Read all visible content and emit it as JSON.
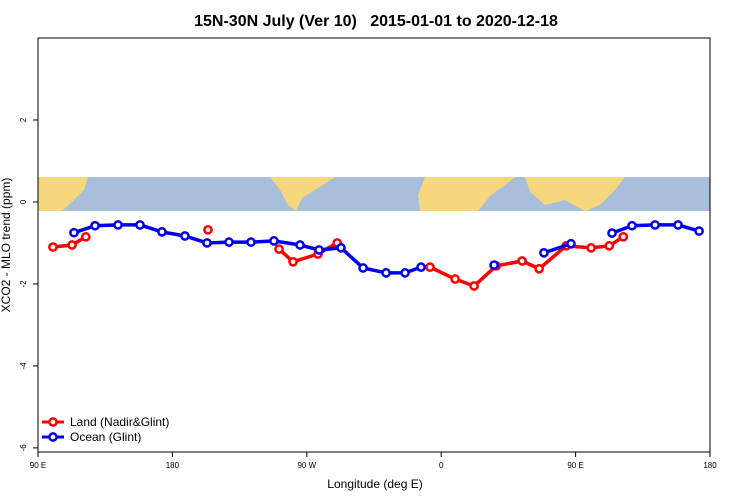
{
  "chart_data": {
    "type": "line",
    "title": "15N-30N July (Ver 10)   2015-01-01 to 2020-12-18",
    "xlabel": "Longitude (deg E)",
    "ylabel": "XCO2 - MLO trend (ppm)",
    "xlim": [
      90,
      540
    ],
    "ylim": [
      -6.1,
      4
    ],
    "xticks": [
      {
        "value": 90,
        "label": "90 E"
      },
      180,
      {
        "value": 270,
        "label": "90 W"
      },
      {
        "value": 360,
        "label": "0"
      },
      {
        "value": 450,
        "label": "90 E"
      },
      {
        "value": 540,
        "label": "180"
      }
    ],
    "yticks": [
      -6,
      -4,
      -2,
      0,
      2
    ],
    "legend": "bottom-left",
    "series": [
      {
        "name": "Land (Nadir&Glint)",
        "color": "#ff0000",
        "x": [
          100,
          112.8,
          122,
          null,
          203.8,
          null,
          251.4,
          260.8,
          277.5,
          290.3,
          null,
          352.5,
          369.3,
          382,
          396.8,
          414.2,
          425.6,
          443.7,
          460.4,
          472.5,
          481.9
        ],
        "values": [
          -1.1,
          -1.05,
          -0.85,
          null,
          -0.68,
          null,
          -1.15,
          -1.46,
          -1.27,
          -1.0,
          null,
          -1.59,
          -1.88,
          -2.05,
          -1.56,
          -1.44,
          -1.63,
          -1.07,
          -1.12,
          -1.07,
          -0.85
        ]
      },
      {
        "name": "Ocean (Glint)",
        "color": "#0000ee",
        "x": [
          114.1,
          128.2,
          143.6,
          158.3,
          173,
          188.4,
          203.2,
          217.9,
          232.6,
          248,
          265.5,
          278.2,
          292.9,
          307.7,
          323.1,
          335.8,
          346.5,
          null,
          395.4,
          null,
          428.8,
          446.9,
          null,
          474.4,
          487.8,
          503.2,
          518.6,
          532.7
        ],
        "values": [
          -0.75,
          -0.58,
          -0.56,
          -0.56,
          -0.73,
          -0.83,
          -1.0,
          -0.98,
          -0.98,
          -0.95,
          -1.05,
          -1.17,
          -1.12,
          -1.61,
          -1.73,
          -1.73,
          -1.59,
          null,
          -1.54,
          null,
          -1.24,
          -1.02,
          null,
          -0.76,
          -0.58,
          -0.56,
          -0.56,
          -0.71
        ]
      }
    ]
  }
}
